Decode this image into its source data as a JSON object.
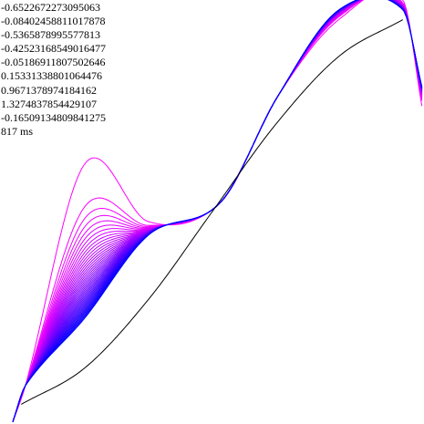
{
  "readout": {
    "values": [
      "-0.6522672273095063",
      "-0.08402458811017878",
      "-0.5365878995577813",
      "-0.42523168549016477",
      "-0.05186911807502646",
      "0.15331338801064476",
      "0.9671378974184162",
      "1.3274837854429107",
      "-0.16509134809841275"
    ],
    "time": "817 ms"
  },
  "colors": {
    "target": "#000000",
    "fit_start": "#ff00ff",
    "fit_end": "#0000ff",
    "text": "#000000"
  },
  "chart_data": {
    "type": "line",
    "title": "",
    "xlabel": "",
    "ylabel": "",
    "xlim": [
      -1,
      1
    ],
    "ylim": [
      -1.1,
      1.1
    ],
    "grid": false,
    "legend": "none",
    "target_curve": {
      "color": "#000000",
      "x": [
        -0.9,
        -0.6,
        -0.3,
        0.0,
        0.3,
        0.6,
        0.9
      ],
      "y": [
        -0.998,
        -0.809,
        -0.454,
        0.0,
        0.454,
        0.809,
        0.998
      ]
    },
    "final_polynomial_coefficients": [
      -0.6522672273095063,
      -0.08402458811017878,
      -0.5365878995577813,
      -0.42523168549016477,
      -0.05186911807502646,
      0.15331338801064476,
      0.9671378974184162,
      1.3274837854429107,
      -0.16509134809841275
    ],
    "fit_iterations": {
      "count": 40,
      "color_start": "#ff00ff",
      "color_end": "#0000ff",
      "first": {
        "x": [
          -0.94,
          -0.88,
          -0.6,
          -0.3,
          0.04,
          0.31,
          0.6,
          0.9,
          0.99
        ],
        "y": [
          -1.09,
          -0.9,
          0.25,
          -0.05,
          0.05,
          0.6,
          1.0,
          1.1,
          0.55
        ]
      },
      "last": {
        "x": [
          -0.94,
          -0.88,
          -0.6,
          -0.3,
          0.04,
          0.31,
          0.6,
          0.9,
          0.99
        ],
        "y": [
          -1.09,
          -0.9,
          -0.55,
          -0.12,
          0.05,
          0.6,
          1.05,
          1.05,
          0.65
        ]
      }
    }
  }
}
